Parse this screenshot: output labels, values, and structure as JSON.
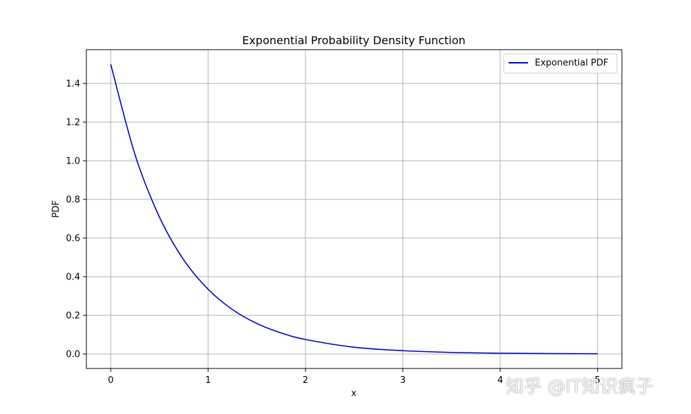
{
  "chart_data": {
    "type": "line",
    "title": "Exponential Probability Density Function",
    "xlabel": "x",
    "ylabel": "PDF",
    "xlim": [
      -0.25,
      5.25
    ],
    "ylim": [
      -0.075,
      1.575
    ],
    "x_ticks": [
      0,
      1,
      2,
      3,
      4,
      5
    ],
    "x_tick_labels": [
      "0",
      "1",
      "2",
      "3",
      "4",
      "5"
    ],
    "y_ticks": [
      0.0,
      0.2,
      0.4,
      0.6,
      0.8,
      1.0,
      1.2,
      1.4
    ],
    "y_tick_labels": [
      "0.0",
      "0.2",
      "0.4",
      "0.6",
      "0.8",
      "1.0",
      "1.2",
      "1.4"
    ],
    "grid": true,
    "legend_position": "top-right",
    "series": [
      {
        "name": "Exponential PDF",
        "color": "#0000cc",
        "x": [
          0,
          0.25,
          0.5,
          0.75,
          1.0,
          1.25,
          1.5,
          1.75,
          2.0,
          2.5,
          3.0,
          3.5,
          4.0,
          4.5,
          5.0
        ],
        "y": [
          1.5,
          1.031,
          0.709,
          0.487,
          0.335,
          0.23,
          0.158,
          0.109,
          0.075,
          0.035,
          0.017,
          0.008,
          0.004,
          0.002,
          0.001
        ]
      }
    ]
  },
  "watermark": "知乎 @IT知识疯子"
}
